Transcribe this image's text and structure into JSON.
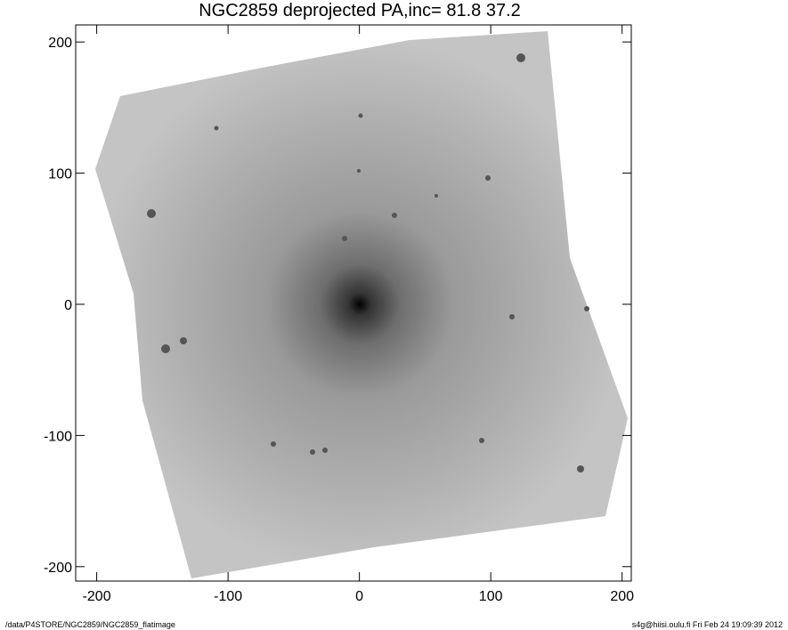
{
  "chart_data": {
    "type": "image",
    "title": "NGC2859 deprojected  PA,inc=  81.8  37.2",
    "xlim": [
      -216,
      207
    ],
    "ylim": [
      -211,
      213
    ],
    "xticks": [
      -200,
      -100,
      0,
      100,
      200
    ],
    "yticks": [
      -200,
      -100,
      0,
      100,
      200
    ],
    "footer_left": "/data/P4STORE/NGC2859/NGC2859_flatimage",
    "footer_right": "s4g@hiisi.oulu.fi  Fri Feb 24 19:09:39 2012"
  }
}
